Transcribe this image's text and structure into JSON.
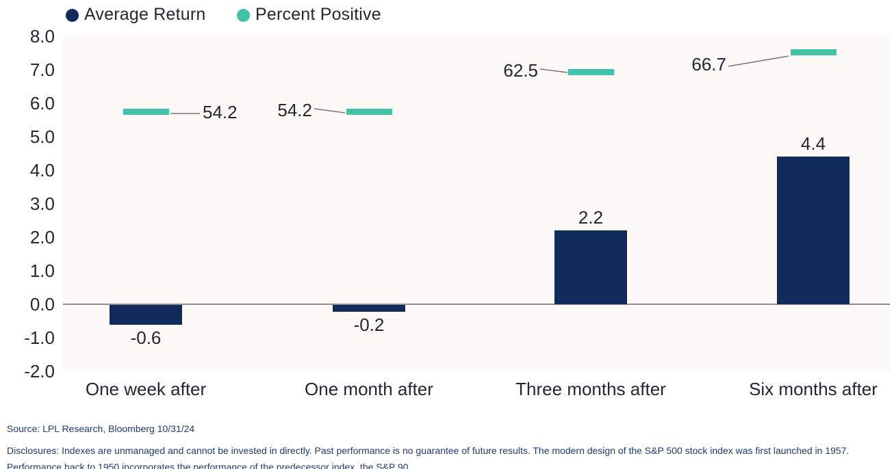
{
  "legend": {
    "items": [
      {
        "label": "Average Return",
        "color": "#112a5c"
      },
      {
        "label": "Percent Positive",
        "color": "#41c2a9"
      }
    ]
  },
  "chart_data": {
    "type": "bar",
    "categories": [
      "One week after",
      "One month after",
      "Three months after",
      "Six months after"
    ],
    "series": [
      {
        "name": "Average Return",
        "type": "bar",
        "axis": "left",
        "color": "#112a5c",
        "values": [
          -0.6,
          -0.2,
          2.2,
          4.4
        ]
      },
      {
        "name": "Percent Positive",
        "type": "dash-marker",
        "axis": "right",
        "color": "#41c2a9",
        "values": [
          54.2,
          54.2,
          62.5,
          66.7
        ]
      }
    ],
    "title": "",
    "xlabel": "",
    "ylabel": "",
    "ylim_left": [
      -2.0,
      8.0
    ],
    "y_tick_step": 1.0,
    "ylim_right": [
      0,
      70
    ],
    "grid": false,
    "legend_position": "top-left",
    "plot_background": "#fcf8f6",
    "zero_line_color": "#8f8f8f",
    "leader_line_color": "#777777",
    "label_text_color": "#222733"
  },
  "footer": {
    "source": "Source: LPL Research, Bloomberg 10/31/24",
    "disclosures": "Disclosures: Indexes are unmanaged and cannot be invested in directly. Past performance is no guarantee of future results. The modern design of the S&P 500 stock index was first launched in 1957. Performance back to 1950 incorporates the performance of the predecessor index, the S&P 90."
  }
}
